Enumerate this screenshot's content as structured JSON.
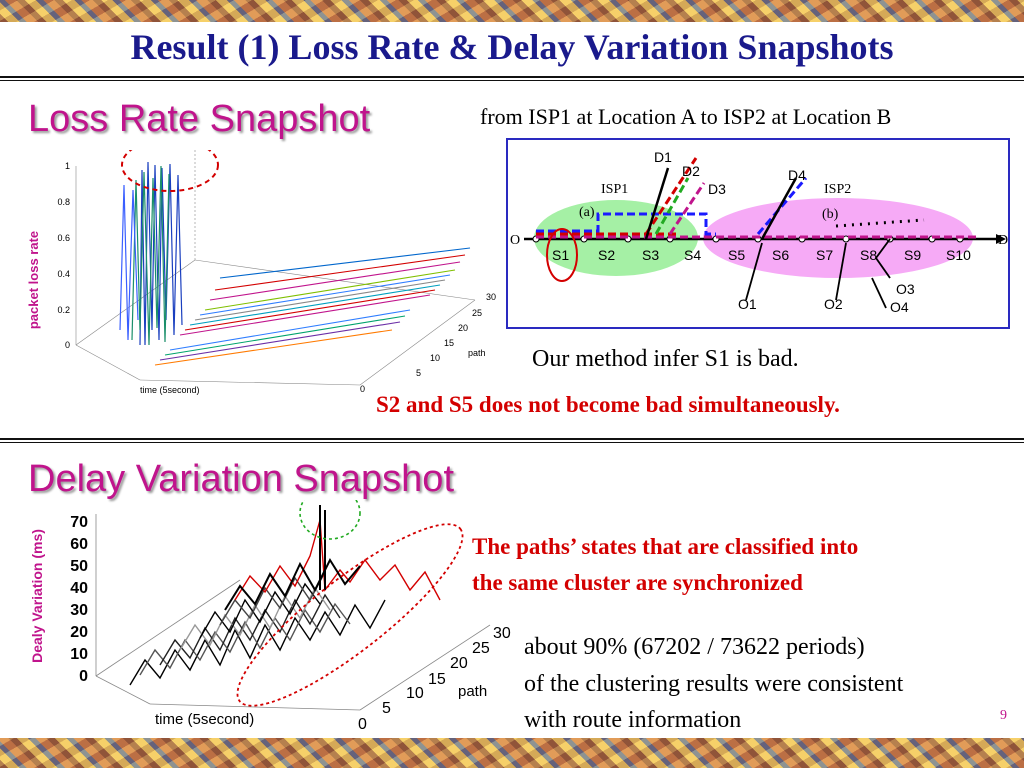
{
  "slide_title": "Result (1) Loss Rate & Delay Variation Snapshots",
  "loss": {
    "heading": "Loss Rate Snapshot",
    "caption": "from ISP1 at Location A to ISP2 at Location B",
    "inference": "Our method infer S1 is bad.",
    "note": "S2 and S5 does not become bad simultaneously.",
    "plot": {
      "zlabel": "packet loss rate",
      "z_ticks": [
        "1",
        "0.8",
        "0.6",
        "0.4",
        "0.2",
        "0"
      ],
      "x_label": "time (5second)",
      "path_label": "path",
      "path_ticks": [
        "30",
        "25",
        "20",
        "15",
        "10",
        "5",
        "0"
      ]
    }
  },
  "network": {
    "isp1": "ISP1",
    "isp2": "ISP2",
    "origin": "O",
    "dest": "D",
    "label_a": "(a)",
    "label_b": "(b)",
    "segments": [
      "S1",
      "S2",
      "S3",
      "S4",
      "S5",
      "S6",
      "S7",
      "S8",
      "S9",
      "S10"
    ],
    "destinations": [
      "D1",
      "D2",
      "D3",
      "D4"
    ],
    "origins": [
      "O1",
      "O2",
      "O3",
      "O4"
    ]
  },
  "delay": {
    "heading": "Delay Variation Snapshot",
    "cluster_note_1": "The paths’ states that are classified into",
    "cluster_note_2": "the same cluster are synchronized",
    "result_1": "about 90% (67202 / 73622 periods)",
    "result_2": "of the clustering results were consistent",
    "result_3": "with route information",
    "plot": {
      "zlabel": "Dealy Variation (ms)",
      "z_ticks": [
        "70",
        "60",
        "50",
        "40",
        "30",
        "20",
        "10",
        "0"
      ],
      "x_label": "time (5second)",
      "path_label": "path",
      "path_ticks": [
        "30",
        "25",
        "20",
        "15",
        "10",
        "5",
        "0"
      ]
    }
  },
  "page_number": "9",
  "colors": {
    "title": "#1a1a8c",
    "heading": "#c0148c",
    "emphasis": "#d30000"
  }
}
